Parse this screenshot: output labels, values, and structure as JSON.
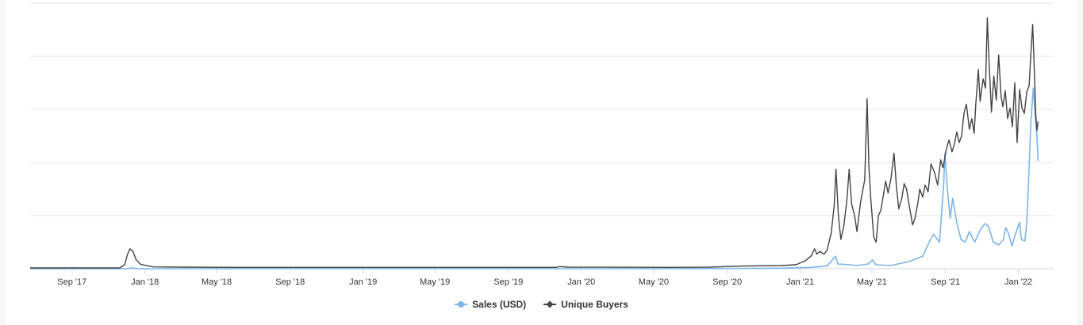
{
  "chart_data": {
    "type": "line",
    "title": "",
    "xlabel": "",
    "ylabel": "",
    "x_range": [
      "2017-06-23",
      "2022-03-01"
    ],
    "y_axis_labels": "not shown",
    "grid": "horizontal",
    "legend_placement": "bottom-center",
    "x_ticks": [
      "Sep '17",
      "Jan '18",
      "May '18",
      "Sep '18",
      "Jan '19",
      "May '19",
      "Sep '19",
      "Jan '20",
      "May '20",
      "Sep '20",
      "Jan '21",
      "May '21",
      "Sep '21",
      "Jan '22"
    ],
    "series": [
      {
        "name": "Sales (USD)",
        "color": "#7cb5ec",
        "marker": "circle",
        "values_note": "relative scale, 0-100",
        "points": [
          [
            "2017-06-23",
            0
          ],
          [
            "2017-12-01",
            0
          ],
          [
            "2017-12-10",
            0.3
          ],
          [
            "2017-12-25",
            0
          ],
          [
            "2018-06-01",
            0
          ],
          [
            "2019-06-01",
            0
          ],
          [
            "2020-06-01",
            0
          ],
          [
            "2020-12-01",
            0.2
          ],
          [
            "2021-01-20",
            0.5
          ],
          [
            "2021-02-15",
            1
          ],
          [
            "2021-03-01",
            4.7
          ],
          [
            "2021-03-05",
            1.8
          ],
          [
            "2021-03-25",
            1.5
          ],
          [
            "2021-04-05",
            1.2
          ],
          [
            "2021-04-25",
            1.8
          ],
          [
            "2021-05-02",
            3.3
          ],
          [
            "2021-05-08",
            1.5
          ],
          [
            "2021-06-01",
            1.2
          ],
          [
            "2021-07-01",
            2.6
          ],
          [
            "2021-07-25",
            4.7
          ],
          [
            "2021-08-06",
            10.5
          ],
          [
            "2021-08-12",
            13
          ],
          [
            "2021-08-22",
            10
          ],
          [
            "2021-08-29",
            31.5
          ],
          [
            "2021-08-31",
            43.5
          ],
          [
            "2021-09-04",
            30.5
          ],
          [
            "2021-09-09",
            19
          ],
          [
            "2021-09-13",
            26.5
          ],
          [
            "2021-09-20",
            17.5
          ],
          [
            "2021-09-27",
            11
          ],
          [
            "2021-10-04",
            10
          ],
          [
            "2021-10-11",
            14
          ],
          [
            "2021-10-20",
            10
          ],
          [
            "2021-10-29",
            14.5
          ],
          [
            "2021-11-06",
            17
          ],
          [
            "2021-11-12",
            16
          ],
          [
            "2021-11-20",
            10
          ],
          [
            "2021-11-29",
            9
          ],
          [
            "2021-12-07",
            11
          ],
          [
            "2021-12-11",
            15.5
          ],
          [
            "2021-12-16",
            13
          ],
          [
            "2021-12-21",
            8.5
          ],
          [
            "2021-12-27",
            13
          ],
          [
            "2022-01-03",
            17.5
          ],
          [
            "2022-01-06",
            11
          ],
          [
            "2022-01-12",
            10.5
          ],
          [
            "2022-01-15",
            17.5
          ],
          [
            "2022-01-18",
            33
          ],
          [
            "2022-01-22",
            56
          ],
          [
            "2022-01-26",
            68
          ],
          [
            "2022-01-29",
            58
          ],
          [
            "2022-02-01",
            50
          ],
          [
            "2022-02-03",
            40.5
          ]
        ]
      },
      {
        "name": "Unique Buyers",
        "color": "#434348",
        "marker": "diamond",
        "values_note": "relative scale, 0-100",
        "points": [
          [
            "2017-06-23",
            0.3
          ],
          [
            "2017-11-20",
            0.3
          ],
          [
            "2017-11-28",
            1.5
          ],
          [
            "2017-12-03",
            5.5
          ],
          [
            "2017-12-07",
            7.5
          ],
          [
            "2017-12-12",
            6.5
          ],
          [
            "2017-12-17",
            3.5
          ],
          [
            "2017-12-25",
            1.6
          ],
          [
            "2018-01-15",
            0.7
          ],
          [
            "2018-03-01",
            0.6
          ],
          [
            "2018-06-01",
            0.5
          ],
          [
            "2019-01-01",
            0.5
          ],
          [
            "2019-09-01",
            0.5
          ],
          [
            "2019-11-20",
            0.5
          ],
          [
            "2019-11-25",
            0.8
          ],
          [
            "2019-12-10",
            0.6
          ],
          [
            "2020-06-01",
            0.5
          ],
          [
            "2020-08-01",
            0.6
          ],
          [
            "2020-10-01",
            1
          ],
          [
            "2020-12-01",
            1.2
          ],
          [
            "2020-12-25",
            1.5
          ],
          [
            "2021-01-10",
            3
          ],
          [
            "2021-01-20",
            5
          ],
          [
            "2021-01-25",
            7.5
          ],
          [
            "2021-01-29",
            5.5
          ],
          [
            "2021-02-03",
            6.5
          ],
          [
            "2021-02-10",
            5.5
          ],
          [
            "2021-02-15",
            7
          ],
          [
            "2021-02-22",
            13.5
          ],
          [
            "2021-02-27",
            24
          ],
          [
            "2021-03-02",
            37.5
          ],
          [
            "2021-03-06",
            20
          ],
          [
            "2021-03-10",
            11
          ],
          [
            "2021-03-15",
            16
          ],
          [
            "2021-03-20",
            25.5
          ],
          [
            "2021-03-24",
            37.5
          ],
          [
            "2021-03-28",
            24.5
          ],
          [
            "2021-04-02",
            20
          ],
          [
            "2021-04-06",
            14
          ],
          [
            "2021-04-12",
            25
          ],
          [
            "2021-04-19",
            33.5
          ],
          [
            "2021-04-23",
            64
          ],
          [
            "2021-04-26",
            38
          ],
          [
            "2021-04-29",
            27
          ],
          [
            "2021-05-04",
            12
          ],
          [
            "2021-05-08",
            10
          ],
          [
            "2021-05-12",
            20
          ],
          [
            "2021-05-16",
            22
          ],
          [
            "2021-05-20",
            27.5
          ],
          [
            "2021-05-24",
            33
          ],
          [
            "2021-05-28",
            28.5
          ],
          [
            "2021-06-02",
            34
          ],
          [
            "2021-06-07",
            43.5
          ],
          [
            "2021-06-11",
            31
          ],
          [
            "2021-06-15",
            22.5
          ],
          [
            "2021-06-20",
            26.5
          ],
          [
            "2021-06-24",
            32
          ],
          [
            "2021-06-28",
            30
          ],
          [
            "2021-07-03",
            23
          ],
          [
            "2021-07-08",
            16.5
          ],
          [
            "2021-07-12",
            19
          ],
          [
            "2021-07-17",
            25
          ],
          [
            "2021-07-20",
            30
          ],
          [
            "2021-07-25",
            27
          ],
          [
            "2021-07-29",
            31.5
          ],
          [
            "2021-08-03",
            29
          ],
          [
            "2021-08-08",
            39.5
          ],
          [
            "2021-08-14",
            36
          ],
          [
            "2021-08-19",
            31.5
          ],
          [
            "2021-08-24",
            41
          ],
          [
            "2021-08-28",
            38
          ],
          [
            "2021-09-02",
            44.5
          ],
          [
            "2021-09-07",
            48.5
          ],
          [
            "2021-09-12",
            44
          ],
          [
            "2021-09-16",
            47
          ],
          [
            "2021-09-20",
            51.5
          ],
          [
            "2021-09-24",
            47.5
          ],
          [
            "2021-09-28",
            50
          ],
          [
            "2021-10-02",
            58.5
          ],
          [
            "2021-10-06",
            62
          ],
          [
            "2021-10-11",
            52.5
          ],
          [
            "2021-10-15",
            56.5
          ],
          [
            "2021-10-19",
            51
          ],
          [
            "2021-10-22",
            62.5
          ],
          [
            "2021-10-26",
            75
          ],
          [
            "2021-10-29",
            63
          ],
          [
            "2021-11-03",
            71.5
          ],
          [
            "2021-11-07",
            68
          ],
          [
            "2021-11-10",
            94.5
          ],
          [
            "2021-11-13",
            78
          ],
          [
            "2021-11-17",
            59
          ],
          [
            "2021-11-21",
            72.5
          ],
          [
            "2021-11-25",
            63.5
          ],
          [
            "2021-11-29",
            80.5
          ],
          [
            "2021-12-03",
            65
          ],
          [
            "2021-12-06",
            61
          ],
          [
            "2021-12-10",
            67
          ],
          [
            "2021-12-14",
            56.5
          ],
          [
            "2021-12-18",
            60.5
          ],
          [
            "2021-12-22",
            53.5
          ],
          [
            "2021-12-26",
            70
          ],
          [
            "2021-12-30",
            47.5
          ],
          [
            "2022-01-03",
            67.5
          ],
          [
            "2022-01-07",
            60.5
          ],
          [
            "2022-01-11",
            58.5
          ],
          [
            "2022-01-15",
            66.5
          ],
          [
            "2022-01-19",
            69
          ],
          [
            "2022-01-22",
            81.5
          ],
          [
            "2022-01-25",
            92
          ],
          [
            "2022-01-27",
            79.5
          ],
          [
            "2022-01-30",
            58.5
          ],
          [
            "2022-02-01",
            52
          ],
          [
            "2022-02-03",
            55.5
          ]
        ]
      }
    ]
  }
}
